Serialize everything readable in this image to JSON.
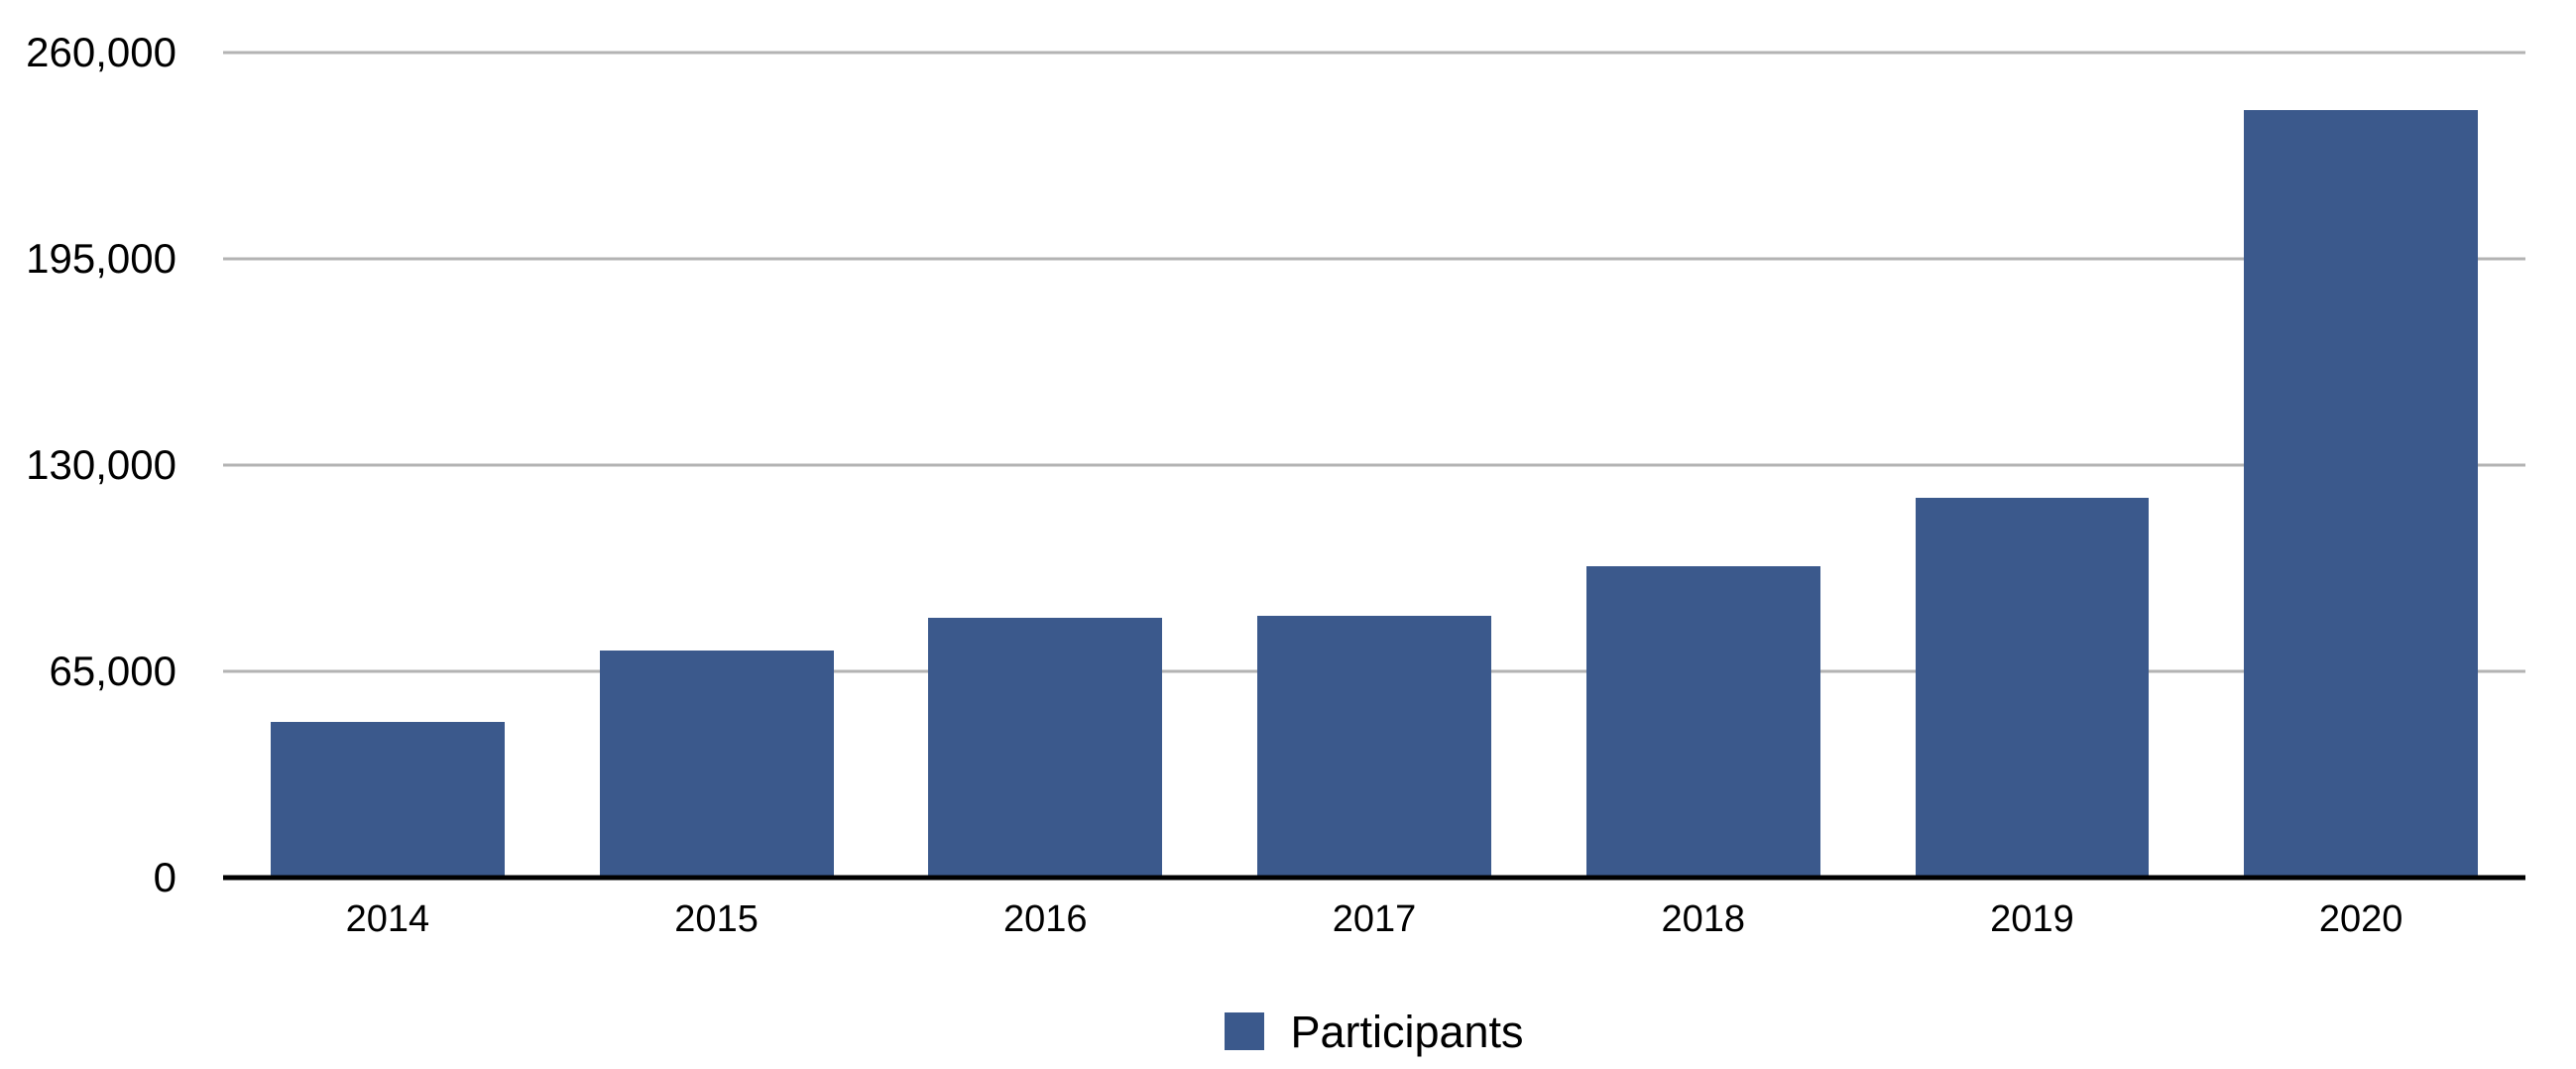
{
  "chart_data": {
    "type": "bar",
    "title": "",
    "categories": [
      "2014",
      "2015",
      "2016",
      "2017",
      "2018",
      "2019",
      "2020"
    ],
    "series": [
      {
        "name": "Participants",
        "values": [
          49000,
          71500,
          82000,
          82500,
          98000,
          119700,
          242000
        ]
      }
    ],
    "xlabel": "",
    "ylabel": "",
    "ylim": [
      0,
      260000
    ],
    "y_ticks": [
      0,
      65000,
      130000,
      195000,
      260000
    ],
    "y_tick_labels": [
      "0",
      "65,000",
      "130,000",
      "195,000",
      "260,000"
    ],
    "grid": true,
    "legend_position": "bottom-center"
  },
  "legend": {
    "label": "Participants"
  },
  "colors": {
    "bar": "#3B598C",
    "gridline": "#b3b3b3",
    "axis_line": "#000000",
    "text": "#000000",
    "background": "#ffffff"
  }
}
